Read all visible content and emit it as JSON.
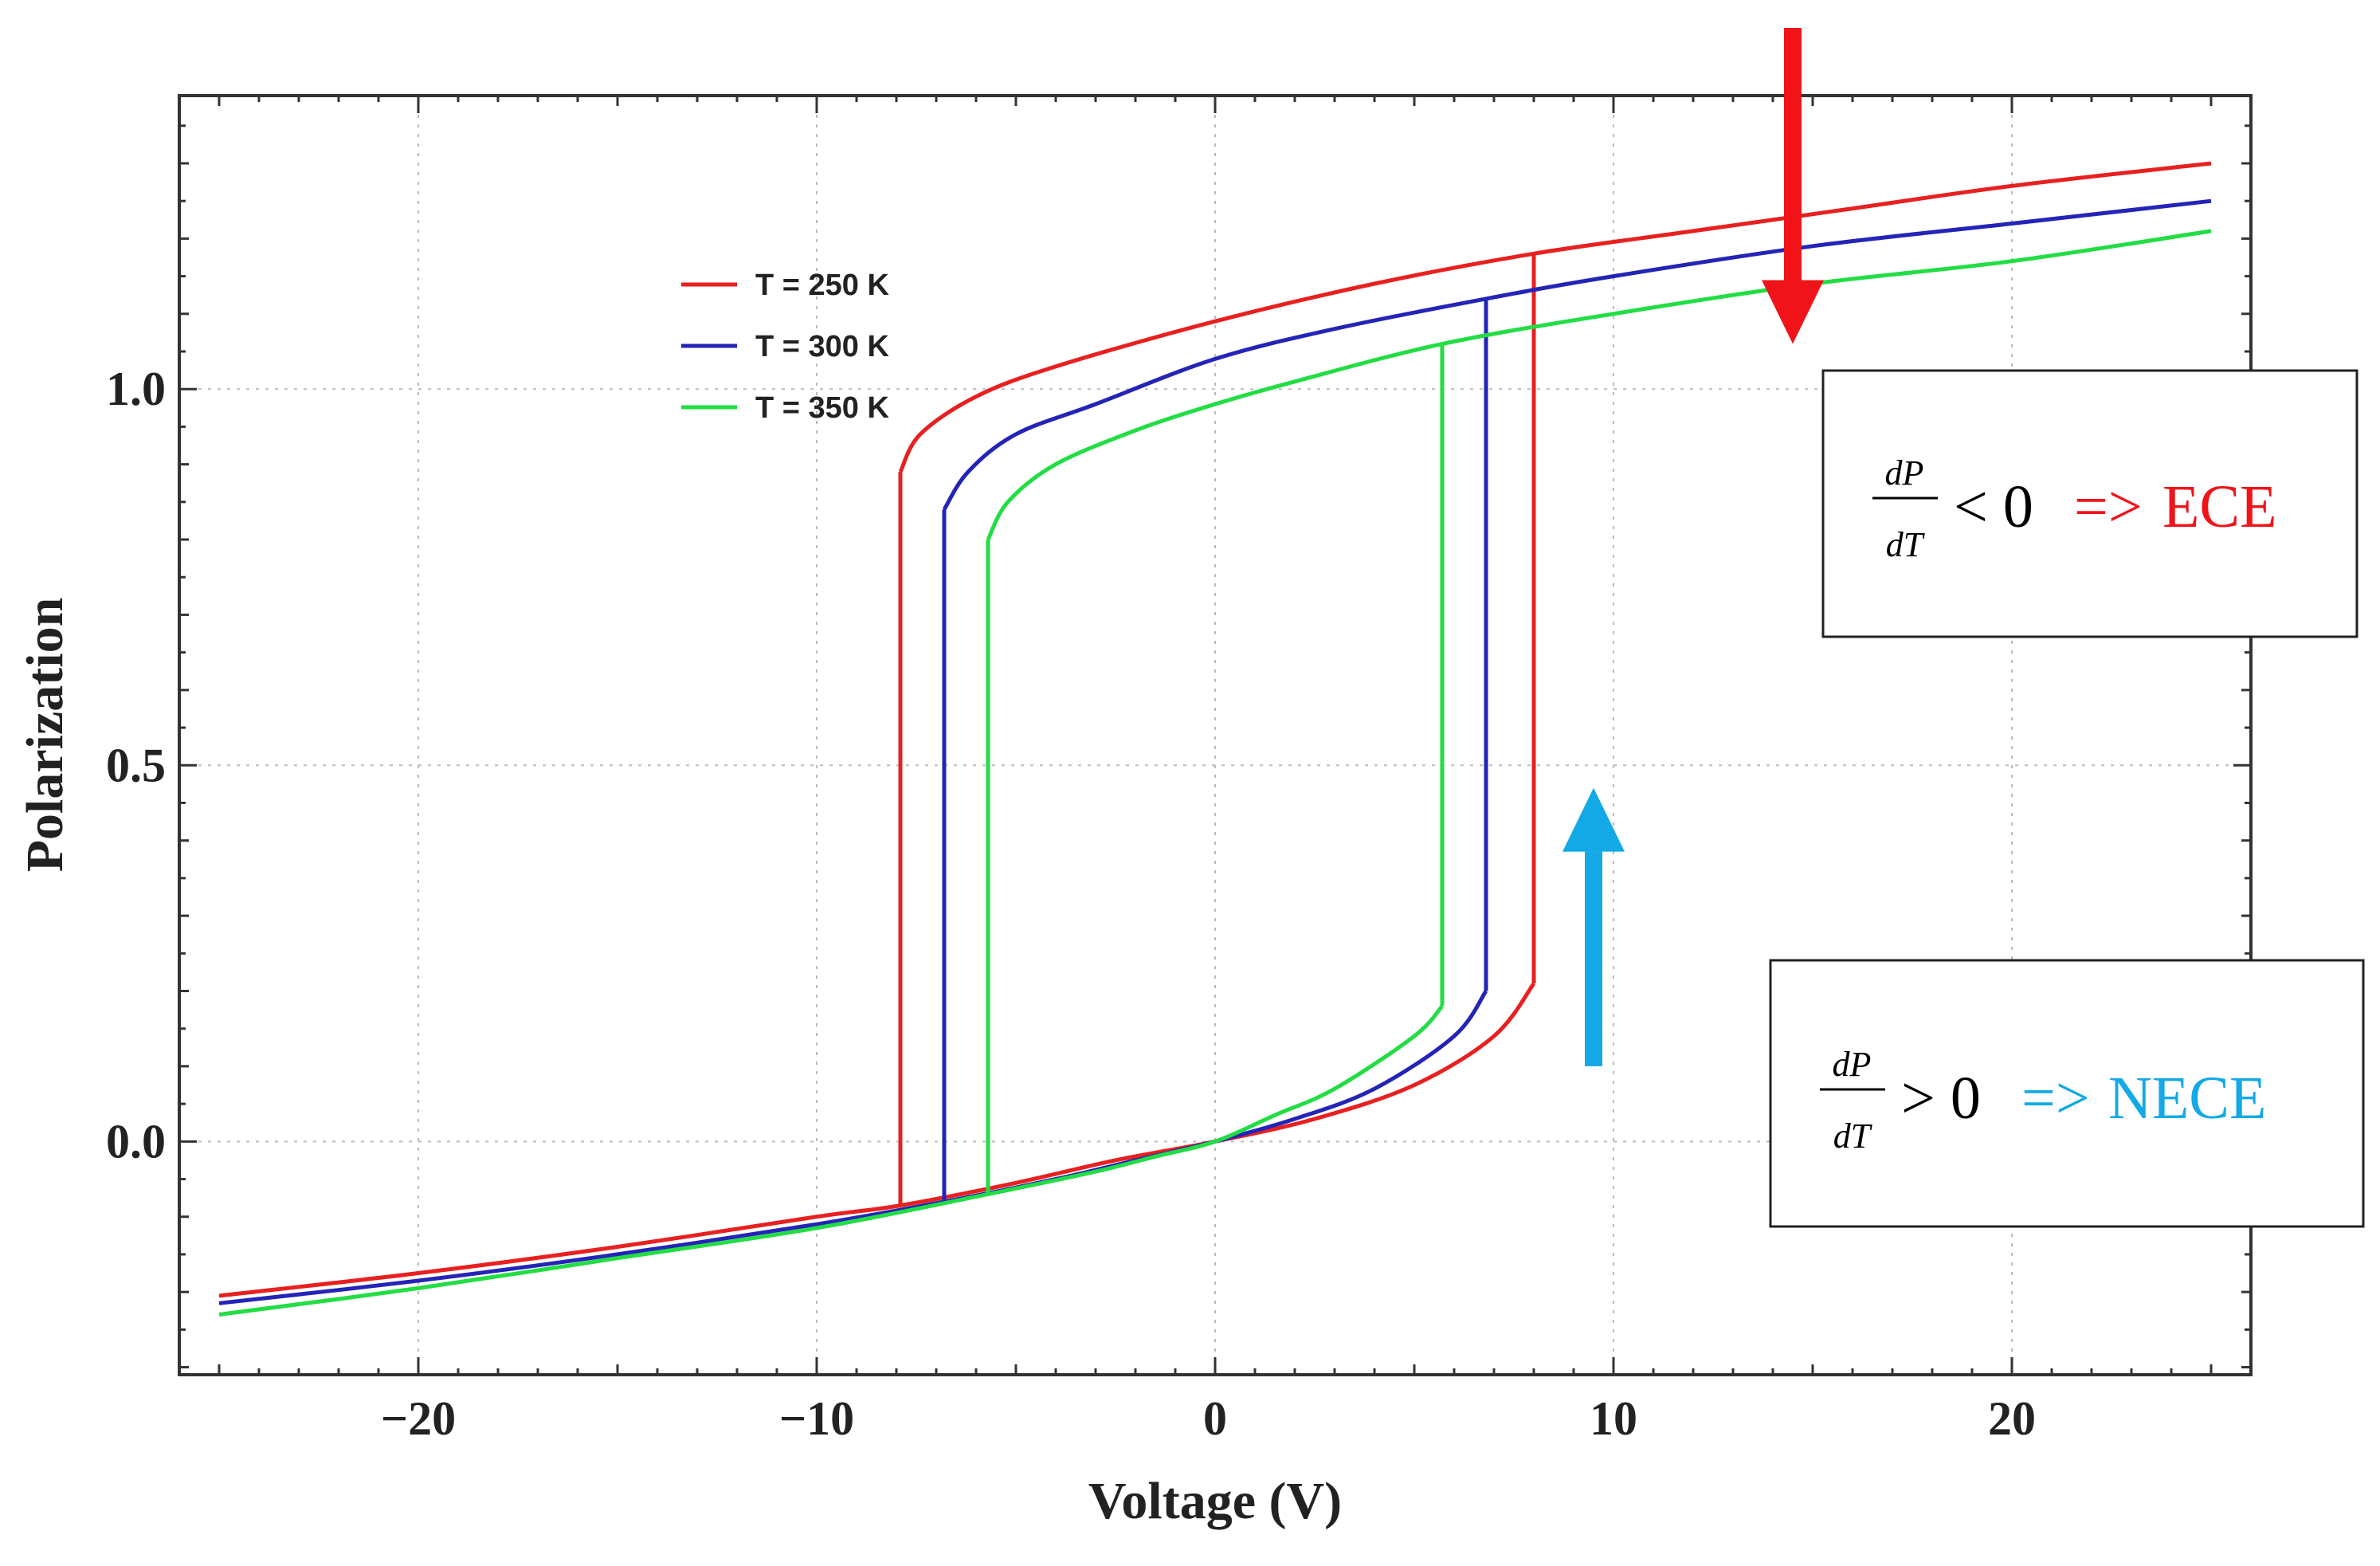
{
  "chart_data": {
    "type": "line",
    "title": "",
    "xlabel": "Voltage (V)",
    "ylabel": "Polarization",
    "xlim": [
      -26,
      26
    ],
    "ylim": [
      -0.31,
      1.39
    ],
    "xticks": [
      -20,
      -10,
      0,
      10,
      20
    ],
    "xtick_labels": [
      "−20",
      "−10",
      "0",
      "10",
      "20"
    ],
    "yticks": [
      0.0,
      0.5,
      1.0
    ],
    "ytick_labels": [
      "0.0",
      "0.5",
      "1.0"
    ],
    "grid": true,
    "legend_position": "top-left",
    "series": [
      {
        "name": "T = 250 K",
        "color": "#e82020",
        "upper_branch": {
          "x": [
            -7.9,
            -7.4,
            -6.0,
            -4.0,
            0,
            4.0,
            8.0,
            12.0,
            16.0,
            20.0,
            25.0
          ],
          "y": [
            0.89,
            0.94,
            0.99,
            1.03,
            1.09,
            1.14,
            1.18,
            1.21,
            1.24,
            1.27,
            1.3
          ]
        },
        "lower_branch": {
          "x": [
            -25.0,
            -20.0,
            -15.0,
            -10.0,
            -7.9,
            -5.0,
            -2.5,
            0,
            2.5,
            5.0,
            7.0,
            8.0
          ],
          "y": [
            -0.205,
            -0.175,
            -0.14,
            -0.1,
            -0.085,
            -0.055,
            -0.025,
            0.0,
            0.03,
            0.075,
            0.14,
            0.21
          ]
        },
        "switch_up_at": 8.0,
        "switch_down_at": -7.9
      },
      {
        "name": "T = 300 K",
        "color": "#2424b8",
        "upper_branch": {
          "x": [
            -6.8,
            -6.2,
            -5.0,
            -3.0,
            0,
            3.0,
            6.8,
            10.0,
            15.0,
            20.0,
            25.0
          ],
          "y": [
            0.84,
            0.89,
            0.94,
            0.98,
            1.04,
            1.08,
            1.12,
            1.15,
            1.19,
            1.22,
            1.25
          ]
        },
        "lower_branch": {
          "x": [
            -25.0,
            -20.0,
            -15.0,
            -10.0,
            -6.8,
            -4.0,
            -2.0,
            0,
            2.0,
            4.0,
            6.0,
            6.8
          ],
          "y": [
            -0.215,
            -0.185,
            -0.15,
            -0.11,
            -0.08,
            -0.05,
            -0.025,
            0.0,
            0.03,
            0.07,
            0.14,
            0.2
          ]
        },
        "switch_up_at": 6.8,
        "switch_down_at": -6.8
      },
      {
        "name": "T = 350 K",
        "color": "#22dd44",
        "upper_branch": {
          "x": [
            -5.7,
            -5.2,
            -4.0,
            -2.0,
            0,
            2.0,
            5.7,
            10.0,
            15.0,
            20.0,
            25.0
          ],
          "y": [
            0.8,
            0.85,
            0.9,
            0.945,
            0.98,
            1.01,
            1.06,
            1.1,
            1.14,
            1.17,
            1.21
          ]
        },
        "lower_branch": {
          "x": [
            -25.0,
            -20.0,
            -15.0,
            -10.0,
            -5.7,
            -3.0,
            -1.5,
            0,
            1.5,
            3.0,
            5.0,
            5.7
          ],
          "y": [
            -0.23,
            -0.195,
            -0.155,
            -0.115,
            -0.07,
            -0.04,
            -0.02,
            0.0,
            0.035,
            0.07,
            0.14,
            0.18
          ]
        },
        "switch_up_at": 5.7,
        "switch_down_at": -5.7
      }
    ],
    "annotations": [
      {
        "id": "red-arrow",
        "direction": "down",
        "color": "#f0141a",
        "x": 14.5,
        "y_from": 1.48,
        "y_to": 1.06
      },
      {
        "id": "blue-arrow",
        "direction": "up",
        "color": "#12a9e6",
        "x": 9.5,
        "y_from": 0.1,
        "y_to": 0.47
      }
    ]
  },
  "annotation_boxes": {
    "ece": {
      "numerator": "dP",
      "denominator": "dT",
      "relation": "< 0",
      "arrow": "=>",
      "effect": "ECE",
      "effect_color": "#f0141a"
    },
    "nece": {
      "numerator": "dP",
      "denominator": "dT",
      "relation": "> 0",
      "arrow": "=>",
      "effect": "NECE",
      "effect_color": "#12a9e6"
    }
  }
}
